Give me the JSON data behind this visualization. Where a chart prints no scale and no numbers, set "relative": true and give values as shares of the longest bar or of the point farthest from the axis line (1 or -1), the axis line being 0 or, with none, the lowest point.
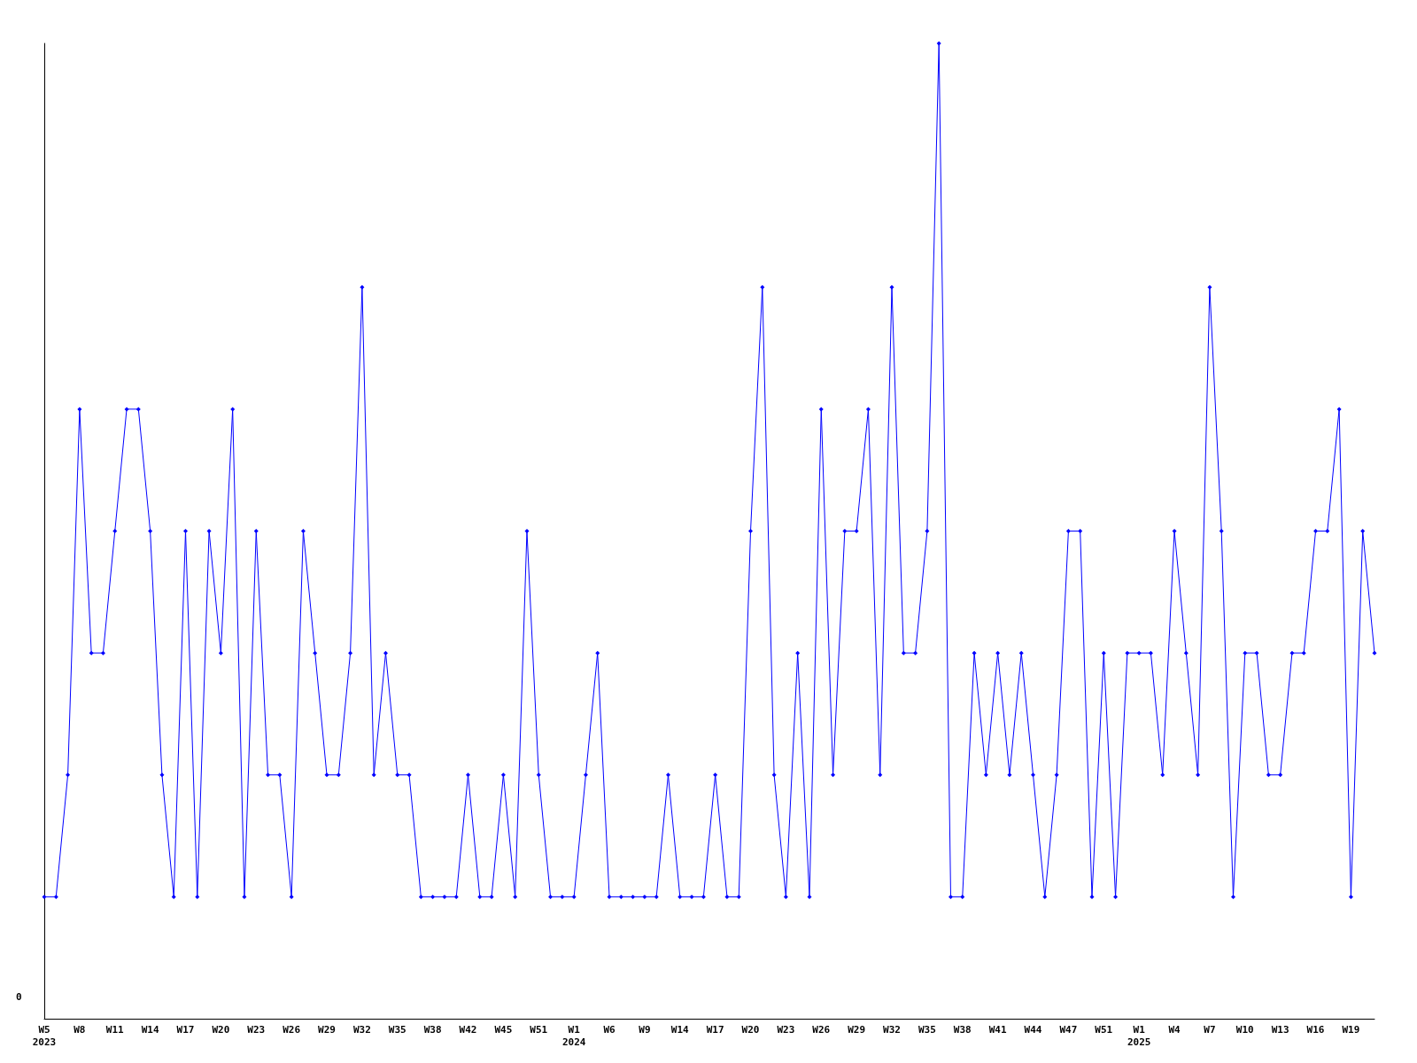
{
  "chart_data": {
    "type": "line",
    "relative": true,
    "marker": "diamond",
    "grid": false,
    "annotations": [
      "0"
    ],
    "categories": [
      "W5\n2023",
      null,
      null,
      "W8",
      null,
      null,
      "W11",
      null,
      null,
      "W14",
      null,
      null,
      "W17",
      null,
      null,
      "W20",
      null,
      null,
      "W23",
      null,
      null,
      "W26",
      null,
      null,
      "W29",
      null,
      null,
      "W32",
      null,
      null,
      "W35",
      null,
      null,
      "W38",
      null,
      null,
      "W42",
      null,
      null,
      "W45",
      null,
      null,
      "W51",
      null,
      null,
      "W1\n2024",
      null,
      null,
      "W6",
      null,
      null,
      "W9",
      null,
      null,
      "W14",
      null,
      null,
      "W17",
      null,
      null,
      "W20",
      null,
      null,
      "W23",
      null,
      null,
      "W26",
      null,
      null,
      "W29",
      null,
      null,
      "W32",
      null,
      null,
      "W35",
      null,
      null,
      "W38",
      null,
      null,
      "W41",
      null,
      null,
      "W44",
      null,
      null,
      "W47",
      null,
      null,
      "W51",
      null,
      null,
      "W1\n2025",
      null,
      null,
      "W4",
      null,
      null,
      "W7",
      null,
      null,
      "W10",
      null,
      null,
      "W13",
      null,
      null,
      "W16",
      null,
      null,
      "W19",
      null,
      null
    ],
    "series": [
      {
        "color": "#0000ff",
        "values": [
          0.125,
          0.125,
          0.25,
          0.625,
          0.375,
          0.375,
          0.5,
          0.625,
          0.625,
          0.5,
          0.25,
          0.125,
          0.5,
          0.125,
          0.5,
          0.375,
          0.625,
          0.125,
          0.5,
          0.25,
          0.25,
          0.125,
          0.5,
          0.375,
          0.25,
          0.25,
          0.375,
          0.75,
          0.25,
          0.375,
          0.25,
          0.25,
          0.125,
          0.125,
          0.125,
          0.125,
          0.25,
          0.125,
          0.125,
          0.25,
          0.125,
          0.5,
          0.25,
          0.125,
          0.125,
          0.125,
          0.25,
          0.375,
          0.125,
          0.125,
          0.125,
          0.125,
          0.125,
          0.25,
          0.125,
          0.125,
          0.125,
          0.25,
          0.125,
          0.125,
          0.5,
          0.75,
          0.25,
          0.125,
          0.375,
          0.125,
          0.625,
          0.25,
          0.5,
          0.5,
          0.625,
          0.25,
          0.75,
          0.375,
          0.375,
          0.5,
          1,
          0.125,
          0.125,
          0.375,
          0.25,
          0.375,
          0.25,
          0.375,
          0.25,
          0.125,
          0.25,
          0.5,
          0.5,
          0.125,
          0.375,
          0.125,
          0.375,
          0.375,
          0.375,
          0.25,
          0.5,
          0.375,
          0.25,
          0.75,
          0.5,
          0.125,
          0.375,
          0.375,
          0.25,
          0.25,
          0.375,
          0.375,
          0.5,
          0.5,
          0.625,
          0.125,
          0.5,
          0.375
        ]
      }
    ]
  }
}
